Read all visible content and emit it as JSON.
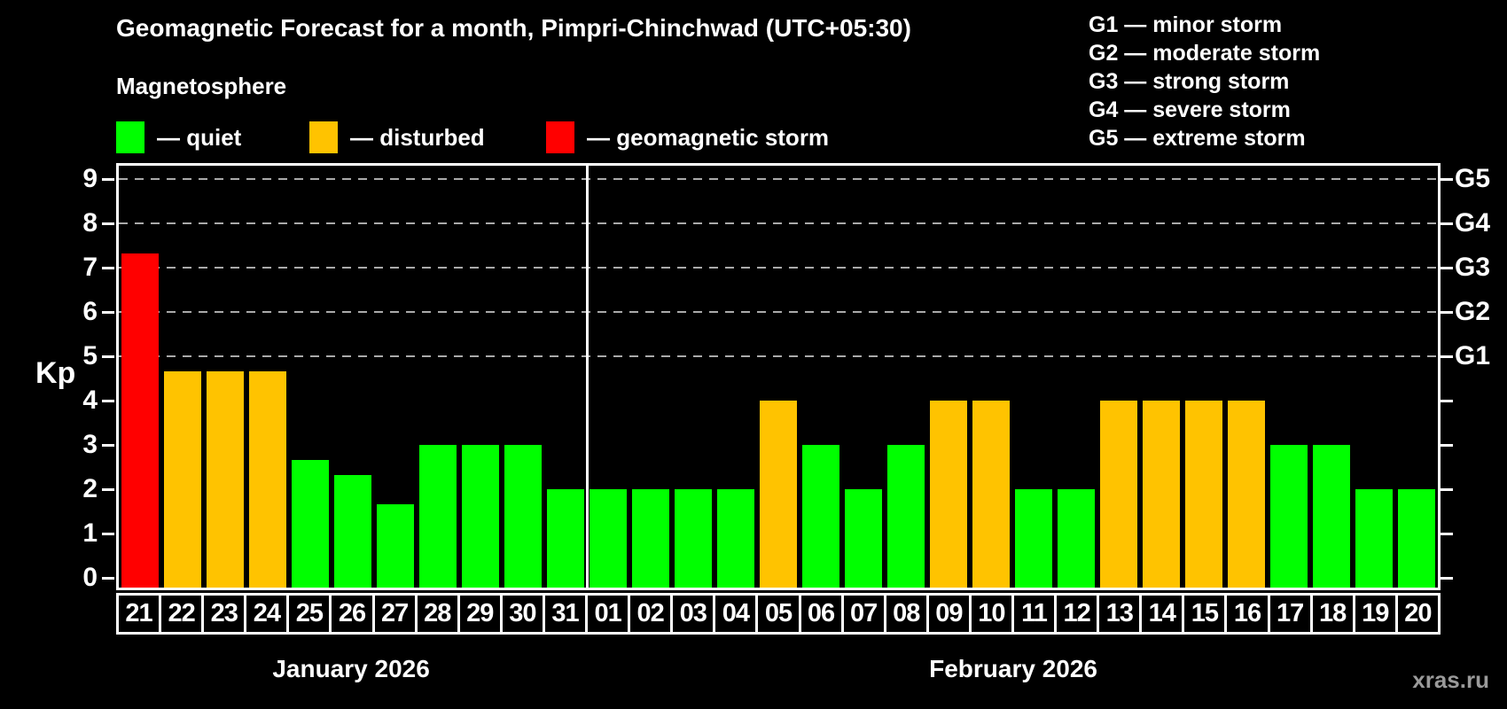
{
  "header": {
    "title": "Geomagnetic Forecast for a month, Pimpri-Chinchwad (UTC+05:30)",
    "subtitle": "Magnetosphere"
  },
  "legend": {
    "items": [
      {
        "key": "quiet",
        "label": "— quiet"
      },
      {
        "key": "disturbed",
        "label": "— disturbed"
      },
      {
        "key": "storm",
        "label": "— geomagnetic storm"
      }
    ]
  },
  "g_scale_legend": {
    "items": [
      "G1 — minor storm",
      "G2 — moderate storm",
      "G3 — strong storm",
      "G4 — severe storm",
      "G5 — extreme storm"
    ]
  },
  "colors": {
    "quiet": "#00ff00",
    "disturbed": "#ffc300",
    "storm": "#ff0000",
    "background": "#000000",
    "axis": "#ffffff",
    "gridline": "#aaaaaa",
    "watermark": "#9a9a9a"
  },
  "watermark": "xras.ru",
  "chart_data": {
    "type": "bar",
    "title": "Geomagnetic Forecast for a month, Pimpri-Chinchwad (UTC+05:30)",
    "ylabel": "Kp",
    "ylim": [
      0,
      9.36
    ],
    "yticks": [
      0,
      1,
      2,
      3,
      4,
      5,
      6,
      7,
      8,
      9
    ],
    "gridlines_at": [
      5,
      6,
      7,
      8,
      9
    ],
    "grid_style": "dashed-horizontal",
    "right_axis_labels": [
      {
        "value": 5,
        "label": "G1"
      },
      {
        "value": 6,
        "label": "G2"
      },
      {
        "value": 7,
        "label": "G3"
      },
      {
        "value": 8,
        "label": "G4"
      },
      {
        "value": 9,
        "label": "G5"
      }
    ],
    "categories": [
      "21",
      "22",
      "23",
      "24",
      "25",
      "26",
      "27",
      "28",
      "29",
      "30",
      "31",
      "01",
      "02",
      "03",
      "04",
      "05",
      "06",
      "07",
      "08",
      "09",
      "10",
      "11",
      "12",
      "13",
      "14",
      "15",
      "16",
      "17",
      "18",
      "19",
      "20"
    ],
    "values": [
      7.33,
      4.67,
      4.67,
      4.67,
      2.67,
      2.33,
      1.67,
      3,
      3,
      3,
      2,
      2,
      2,
      2,
      2,
      4,
      3,
      2,
      3,
      4,
      4,
      2,
      2,
      4,
      4,
      4,
      4,
      3,
      3,
      2,
      2
    ],
    "statuses": [
      "storm",
      "disturbed",
      "disturbed",
      "disturbed",
      "quiet",
      "quiet",
      "quiet",
      "quiet",
      "quiet",
      "quiet",
      "quiet",
      "quiet",
      "quiet",
      "quiet",
      "quiet",
      "disturbed",
      "quiet",
      "quiet",
      "quiet",
      "disturbed",
      "disturbed",
      "quiet",
      "quiet",
      "disturbed",
      "disturbed",
      "disturbed",
      "disturbed",
      "quiet",
      "quiet",
      "quiet",
      "quiet"
    ],
    "separator_after_index": 10,
    "month_groups": [
      {
        "label": "January 2026",
        "start_index": 0,
        "day_count": 11
      },
      {
        "label": "February 2026",
        "start_index": 11,
        "day_count": 20
      }
    ],
    "legend_position": "top-left"
  }
}
